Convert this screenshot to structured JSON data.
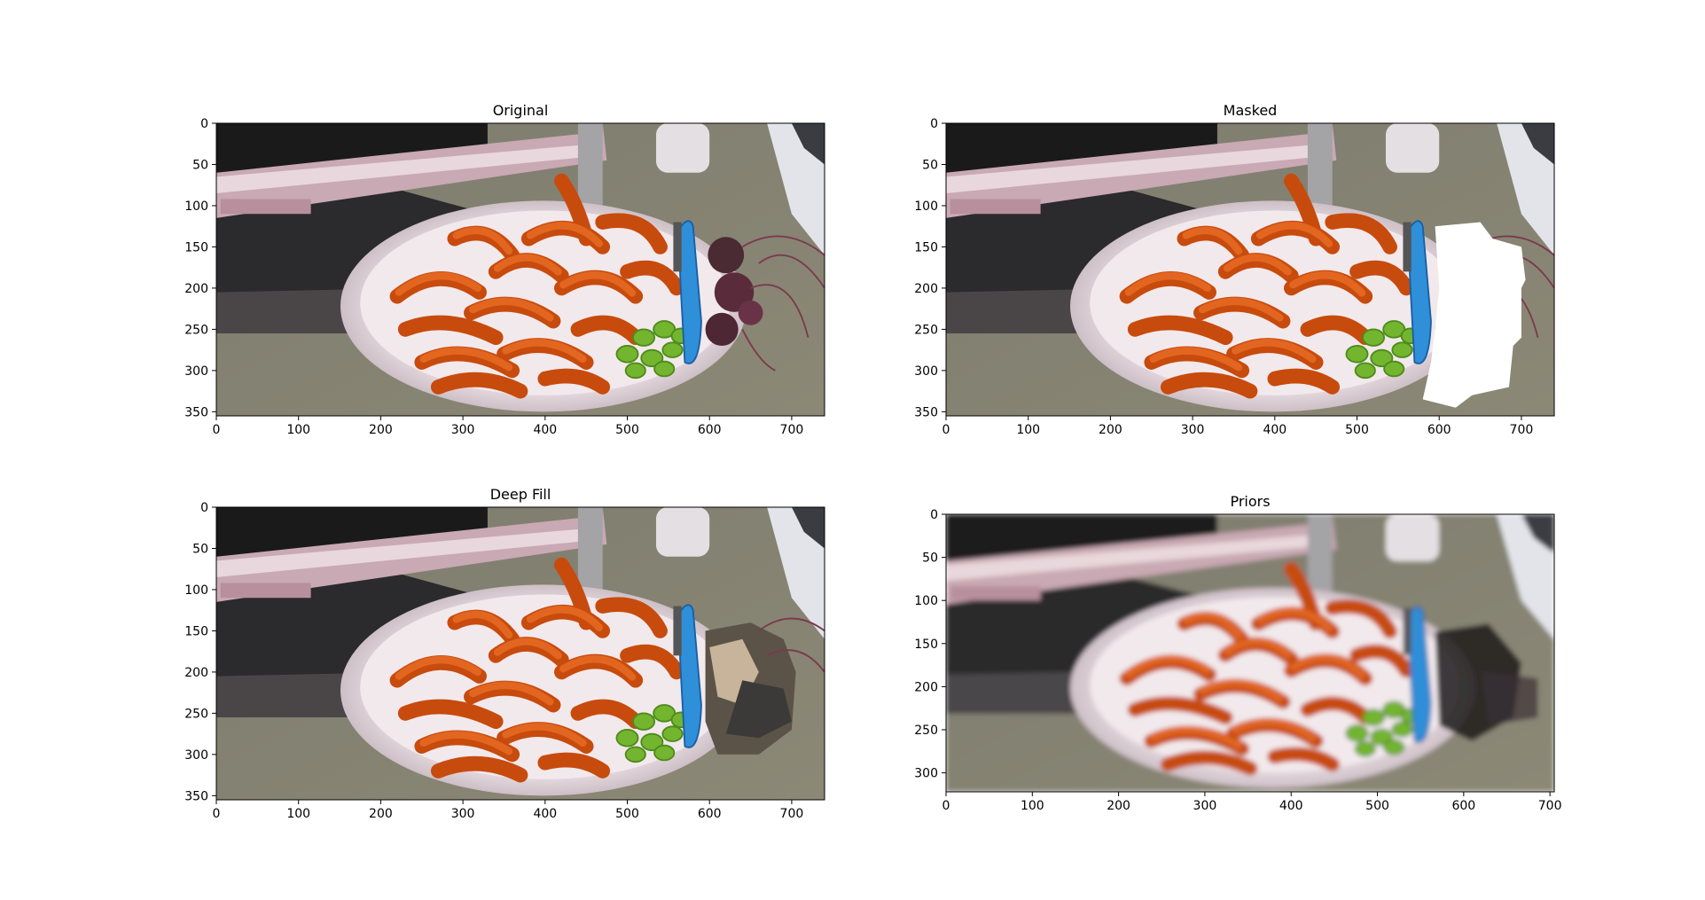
{
  "figure": {
    "panels": [
      {
        "title": "Original",
        "image": "carrots-plate-with-beets",
        "x_ticks": [
          "0",
          "100",
          "200",
          "300",
          "400",
          "500",
          "600",
          "700"
        ],
        "y_ticks": [
          "0",
          "50",
          "100",
          "150",
          "200",
          "250",
          "300",
          "350"
        ]
      },
      {
        "title": "Masked",
        "image": "carrots-plate-beets-masked-white",
        "x_ticks": [
          "0",
          "100",
          "200",
          "300",
          "400",
          "500",
          "600",
          "700"
        ],
        "y_ticks": [
          "0",
          "50",
          "100",
          "150",
          "200",
          "250",
          "300",
          "350"
        ]
      },
      {
        "title": "Deep Fill",
        "image": "carrots-plate-deepfill-inpainted",
        "x_ticks": [
          "0",
          "100",
          "200",
          "300",
          "400",
          "500",
          "600",
          "700"
        ],
        "y_ticks": [
          "0",
          "50",
          "100",
          "150",
          "200",
          "250",
          "300",
          "350"
        ]
      },
      {
        "title": "Priors",
        "image": "carrots-plate-priors-blurred",
        "x_ticks": [
          "0",
          "100",
          "200",
          "300",
          "400",
          "500",
          "600",
          "700"
        ],
        "y_ticks": [
          "0",
          "50",
          "100",
          "150",
          "200",
          "250",
          "300"
        ]
      }
    ]
  }
}
